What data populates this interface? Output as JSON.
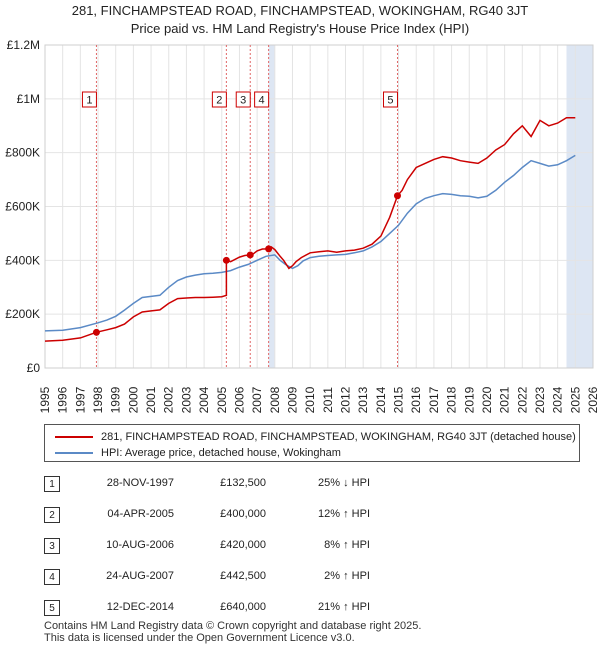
{
  "title_line1": "281, FINCHAMPSTEAD ROAD, FINCHAMPSTEAD, WOKINGHAM, RG40 3JT",
  "title_line2": "Price paid vs. HM Land Registry's House Price Index (HPI)",
  "colors": {
    "property": "#cc0000",
    "hpi": "#5b8ac6",
    "marker_line": "#e06666",
    "shade": "#dde6f3",
    "grid": "#e4e4e4"
  },
  "chart_data": {
    "type": "line",
    "title": "281, FINCHAMPSTEAD ROAD, FINCHAMPSTEAD, WOKINGHAM, RG40 3JT — Price paid vs. HM Land Registry's House Price Index (HPI)",
    "xlabel": "",
    "ylabel": "",
    "xlim": [
      1995,
      2026
    ],
    "ylim": [
      0,
      1200000
    ],
    "y_ticks": [
      {
        "value": 0,
        "label": "£0"
      },
      {
        "value": 200000,
        "label": "£200K"
      },
      {
        "value": 400000,
        "label": "£400K"
      },
      {
        "value": 600000,
        "label": "£600K"
      },
      {
        "value": 800000,
        "label": "£800K"
      },
      {
        "value": 1000000,
        "label": "£1M"
      },
      {
        "value": 1200000,
        "label": "£1.2M"
      }
    ],
    "x_ticks": [
      "1995",
      "1996",
      "1997",
      "1998",
      "1999",
      "2000",
      "2001",
      "2002",
      "2003",
      "2004",
      "2005",
      "2006",
      "2007",
      "2008",
      "2009",
      "2010",
      "2011",
      "2012",
      "2013",
      "2014",
      "2015",
      "2016",
      "2017",
      "2018",
      "2019",
      "2020",
      "2021",
      "2022",
      "2023",
      "2024",
      "2025",
      "2026"
    ],
    "series": [
      {
        "name": "281, FINCHAMPSTEAD ROAD, FINCHAMPSTEAD, WOKINGHAM, RG40 3JT (detached house)",
        "x": [
          1995.0,
          1996.0,
          1997.0,
          1997.9,
          1998.5,
          1999.0,
          1999.5,
          2000.0,
          2000.5,
          2001.0,
          2001.5,
          2002.0,
          2002.5,
          2003.0,
          2003.5,
          2004.0,
          2004.5,
          2005.0,
          2005.26,
          2005.26,
          2005.5,
          2006.0,
          2006.3,
          2006.61,
          2006.8,
          2007.0,
          2007.3,
          2007.65,
          2007.8,
          2008.0,
          2008.3,
          2008.5,
          2008.8,
          2009.0,
          2009.2,
          2009.5,
          2010.0,
          2010.5,
          2011.0,
          2011.5,
          2012.0,
          2012.5,
          2013.0,
          2013.5,
          2014.0,
          2014.5,
          2014.94,
          2015.2,
          2015.5,
          2016.0,
          2016.5,
          2017.0,
          2017.5,
          2018.0,
          2018.5,
          2019.0,
          2019.5,
          2020.0,
          2020.5,
          2021.0,
          2021.5,
          2022.0,
          2022.5,
          2023.0,
          2023.5,
          2024.0,
          2024.5,
          2025.0
        ],
        "values": [
          100000,
          103000,
          112000,
          132500,
          142000,
          150000,
          163000,
          190000,
          208000,
          212000,
          216000,
          240000,
          258000,
          260000,
          262000,
          262000,
          263000,
          265000,
          270000,
          400000,
          395000,
          412000,
          418000,
          420000,
          425000,
          435000,
          442000,
          442500,
          450000,
          440000,
          415000,
          400000,
          370000,
          380000,
          395000,
          410000,
          428000,
          432000,
          435000,
          430000,
          435000,
          438000,
          445000,
          460000,
          490000,
          560000,
          640000,
          660000,
          700000,
          745000,
          760000,
          775000,
          785000,
          780000,
          770000,
          765000,
          760000,
          780000,
          810000,
          830000,
          870000,
          900000,
          860000,
          920000,
          900000,
          910000,
          930000,
          930000
        ]
      },
      {
        "name": "HPI: Average price, detached house, Wokingham",
        "x": [
          1995.0,
          1996.0,
          1997.0,
          1998.0,
          1998.5,
          1999.0,
          1999.5,
          2000.0,
          2000.5,
          2001.0,
          2001.5,
          2002.0,
          2002.5,
          2003.0,
          2003.5,
          2004.0,
          2004.5,
          2005.0,
          2005.5,
          2006.0,
          2006.5,
          2007.0,
          2007.5,
          2008.0,
          2008.3,
          2008.6,
          2009.0,
          2009.3,
          2009.6,
          2010.0,
          2010.5,
          2011.0,
          2011.5,
          2012.0,
          2012.5,
          2013.0,
          2013.5,
          2014.0,
          2014.5,
          2015.0,
          2015.5,
          2016.0,
          2016.5,
          2017.0,
          2017.5,
          2018.0,
          2018.5,
          2019.0,
          2019.5,
          2020.0,
          2020.5,
          2021.0,
          2021.5,
          2022.0,
          2022.5,
          2023.0,
          2023.5,
          2024.0,
          2024.5,
          2025.0
        ],
        "values": [
          138000,
          140000,
          150000,
          168000,
          178000,
          192000,
          215000,
          240000,
          262000,
          266000,
          270000,
          300000,
          325000,
          338000,
          345000,
          350000,
          352000,
          355000,
          362000,
          375000,
          385000,
          400000,
          415000,
          420000,
          400000,
          385000,
          370000,
          380000,
          398000,
          410000,
          415000,
          418000,
          420000,
          422000,
          428000,
          435000,
          450000,
          470000,
          500000,
          530000,
          575000,
          610000,
          630000,
          640000,
          648000,
          645000,
          640000,
          638000,
          632000,
          638000,
          660000,
          690000,
          715000,
          745000,
          770000,
          760000,
          750000,
          755000,
          770000,
          790000
        ]
      }
    ],
    "sales": [
      {
        "label": "1",
        "x": 1997.91,
        "value": 132500
      },
      {
        "label": "2",
        "x": 2005.26,
        "value": 400000
      },
      {
        "label": "3",
        "x": 2006.61,
        "value": 420000
      },
      {
        "label": "4",
        "x": 2007.65,
        "value": 442500
      },
      {
        "label": "5",
        "x": 2014.94,
        "value": 640000
      }
    ],
    "shaded_ranges": [
      [
        2007.65,
        2008.0
      ],
      [
        2024.5,
        2026
      ]
    ],
    "legend": {
      "placement": "below"
    }
  },
  "legend": {
    "property_label": "281, FINCHAMPSTEAD ROAD, FINCHAMPSTEAD, WOKINGHAM, RG40 3JT (detached house)",
    "hpi_label": "HPI: Average price, detached house, Wokingham"
  },
  "sales_table": [
    {
      "num": "1",
      "date": "28-NOV-1997",
      "price": "£132,500",
      "hpi": "25% ↓ HPI"
    },
    {
      "num": "2",
      "date": "04-APR-2005",
      "price": "£400,000",
      "hpi": "12% ↑ HPI"
    },
    {
      "num": "3",
      "date": "10-AUG-2006",
      "price": "£420,000",
      "hpi": "8% ↑ HPI"
    },
    {
      "num": "4",
      "date": "24-AUG-2007",
      "price": "£442,500",
      "hpi": "2% ↑ HPI"
    },
    {
      "num": "5",
      "date": "12-DEC-2014",
      "price": "£640,000",
      "hpi": "21% ↑ HPI"
    }
  ],
  "footer": {
    "line1": "Contains HM Land Registry data © Crown copyright and database right 2025.",
    "line2": "This data is licensed under the Open Government Licence v3.0."
  }
}
